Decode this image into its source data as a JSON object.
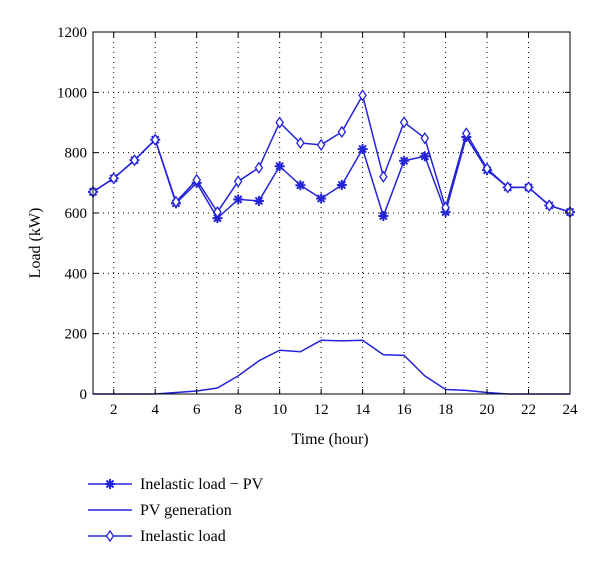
{
  "chart_data": {
    "type": "line",
    "title": "",
    "xlabel": "Time (hour)",
    "ylabel": "Load (kW)",
    "xlim": [
      1,
      24
    ],
    "ylim": [
      0,
      1200
    ],
    "xticks": [
      2,
      4,
      6,
      8,
      10,
      12,
      14,
      16,
      18,
      20,
      22,
      24
    ],
    "xtick_labels": [
      "2",
      "4",
      "6",
      "8",
      "10",
      "12",
      "14",
      "16",
      "18",
      "20",
      "22",
      "24"
    ],
    "yticks": [
      0,
      200,
      400,
      600,
      800,
      1000,
      1200
    ],
    "ytick_labels": [
      "0",
      "200",
      "400",
      "600",
      "800",
      "1000",
      "1200"
    ],
    "grid": true,
    "grid_style": "dotted",
    "legend_position": "below plot",
    "line_color": "#2323d8",
    "x": [
      1,
      2,
      3,
      4,
      5,
      6,
      7,
      8,
      9,
      10,
      11,
      12,
      13,
      14,
      15,
      16,
      17,
      18,
      19,
      20,
      21,
      22,
      23,
      24
    ],
    "series": [
      {
        "name": "Inelastic load − PV",
        "marker": "star",
        "values": [
          670,
          715,
          775,
          843,
          632,
          700,
          583,
          645,
          640,
          755,
          692,
          648,
          693,
          812,
          590,
          773,
          788,
          603,
          852,
          742,
          685,
          685,
          625,
          603
        ]
      },
      {
        "name": "PV generation",
        "marker": "none",
        "values": [
          0,
          0,
          0,
          0,
          5,
          10,
          20,
          60,
          110,
          145,
          140,
          178,
          176,
          178,
          130,
          128,
          60,
          15,
          12,
          5,
          0,
          0,
          0,
          0
        ]
      },
      {
        "name": "Inelastic load",
        "marker": "diamond",
        "values": [
          670,
          715,
          775,
          843,
          637,
          710,
          603,
          705,
          750,
          900,
          832,
          826,
          869,
          990,
          720,
          901,
          848,
          618,
          864,
          747,
          685,
          685,
          625,
          603
        ]
      }
    ]
  }
}
